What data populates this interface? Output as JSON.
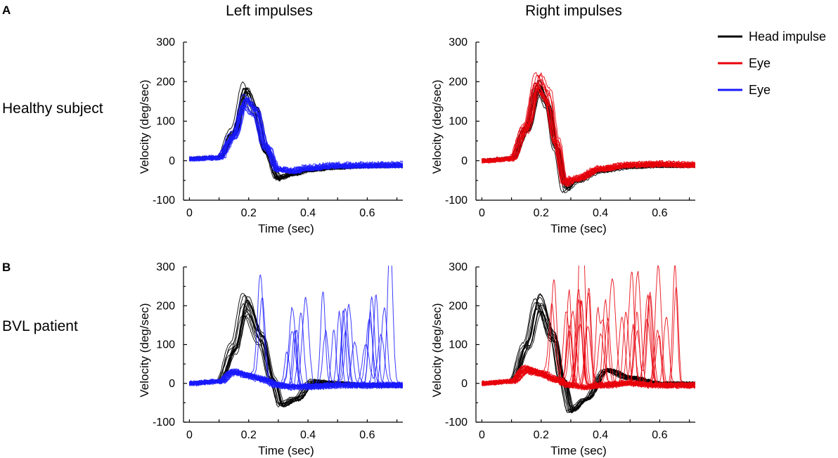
{
  "chart_data": {
    "type": "line",
    "panel_labels": [
      "A",
      "B"
    ],
    "column_titles": [
      "Left impulses",
      "Right impulses"
    ],
    "row_labels": [
      "Healthy subject",
      "BVL patient"
    ],
    "legend": [
      {
        "label": "Head impulse",
        "color": "#000000"
      },
      {
        "label": "Eye",
        "color": "#e8000b"
      },
      {
        "label": "Eye",
        "color": "#1a1aff"
      }
    ],
    "colors": {
      "head": "#000000",
      "eye_right": "#e8000b",
      "eye_left": "#1a1aff"
    },
    "xlabel": "Time (sec)",
    "ylabel": "Velocity (deg/sec)",
    "xlim": [
      -0.02,
      0.72
    ],
    "ylim": [
      -100,
      300
    ],
    "xticks": [
      0,
      0.2,
      0.4,
      0.6
    ],
    "xtick_labels": [
      "0",
      "0.2",
      "0.4",
      "0.6"
    ],
    "yticks": [
      -100,
      0,
      100,
      200,
      300
    ],
    "ytick_labels": [
      "-100",
      "0",
      "100",
      "200",
      "300"
    ],
    "panels": [
      {
        "id": "A-left",
        "row": "Healthy subject",
        "column": "Left impulses",
        "series": [
          {
            "name": "Head impulse",
            "color": "#000000",
            "trace_count": 14,
            "x": [
              0,
              0.1,
              0.15,
              0.19,
              0.22,
              0.26,
              0.3,
              0.35,
              0.4,
              0.5,
              0.6,
              0.7
            ],
            "y": [
              5,
              8,
              70,
              175,
              130,
              20,
              -45,
              -35,
              -25,
              -18,
              -15,
              -14
            ]
          },
          {
            "name": "Eye",
            "color": "#1a1aff",
            "trace_count": 16,
            "x": [
              0,
              0.1,
              0.15,
              0.19,
              0.22,
              0.26,
              0.3,
              0.35,
              0.4,
              0.5,
              0.6,
              0.7
            ],
            "y": [
              5,
              8,
              60,
              145,
              125,
              35,
              -20,
              -25,
              -18,
              -12,
              -11,
              -10
            ]
          }
        ]
      },
      {
        "id": "A-right",
        "row": "Healthy subject",
        "column": "Right impulses",
        "series": [
          {
            "name": "Head impulse",
            "color": "#000000",
            "trace_count": 12,
            "x": [
              0,
              0.1,
              0.15,
              0.19,
              0.22,
              0.25,
              0.28,
              0.32,
              0.4,
              0.5,
              0.6,
              0.7
            ],
            "y": [
              0,
              5,
              80,
              185,
              140,
              30,
              -70,
              -50,
              -25,
              -15,
              -12,
              -12
            ]
          },
          {
            "name": "Eye",
            "color": "#e8000b",
            "trace_count": 16,
            "x": [
              0,
              0.1,
              0.15,
              0.19,
              0.22,
              0.25,
              0.28,
              0.32,
              0.4,
              0.5,
              0.6,
              0.7
            ],
            "y": [
              0,
              5,
              85,
              200,
              165,
              50,
              -55,
              -45,
              -20,
              -10,
              -8,
              -10
            ]
          }
        ]
      },
      {
        "id": "B-left",
        "row": "BVL patient",
        "column": "Left impulses",
        "series": [
          {
            "name": "Head impulse",
            "color": "#000000",
            "trace_count": 14,
            "x": [
              0,
              0.1,
              0.15,
              0.19,
              0.24,
              0.28,
              0.31,
              0.36,
              0.42,
              0.5,
              0.6,
              0.7
            ],
            "y": [
              0,
              5,
              90,
              205,
              120,
              10,
              -55,
              -40,
              5,
              0,
              -5,
              -5
            ]
          },
          {
            "name": "Eye",
            "color": "#1a1aff",
            "trace_count": 20,
            "x": [
              0,
              0.1,
              0.15,
              0.2,
              0.25,
              0.3,
              0.35,
              0.4,
              0.5,
              0.6,
              0.7
            ],
            "y": [
              0,
              5,
              30,
              20,
              10,
              -5,
              -10,
              -8,
              -5,
              -5,
              -5
            ],
            "saccade_peaks": [
              270,
              300,
              300,
              290,
              240,
              290,
              200,
              170,
              140,
              110,
              130
            ]
          }
        ]
      },
      {
        "id": "B-right",
        "row": "BVL patient",
        "column": "Right impulses",
        "series": [
          {
            "name": "Head impulse",
            "color": "#000000",
            "trace_count": 14,
            "x": [
              0,
              0.1,
              0.15,
              0.19,
              0.24,
              0.27,
              0.3,
              0.35,
              0.42,
              0.5,
              0.6,
              0.7
            ],
            "y": [
              0,
              5,
              100,
              210,
              120,
              10,
              -70,
              -40,
              35,
              15,
              0,
              0
            ]
          },
          {
            "name": "Eye",
            "color": "#e8000b",
            "trace_count": 22,
            "x": [
              0,
              0.1,
              0.15,
              0.2,
              0.25,
              0.3,
              0.35,
              0.4,
              0.5,
              0.6,
              0.7
            ],
            "y": [
              0,
              5,
              35,
              25,
              10,
              -5,
              -10,
              -5,
              0,
              -5,
              -5
            ],
            "saccade_peaks": [
              300,
              300,
              300,
              290,
              280,
              260,
              250,
              250,
              240,
              230,
              220,
              210
            ]
          }
        ]
      }
    ]
  }
}
